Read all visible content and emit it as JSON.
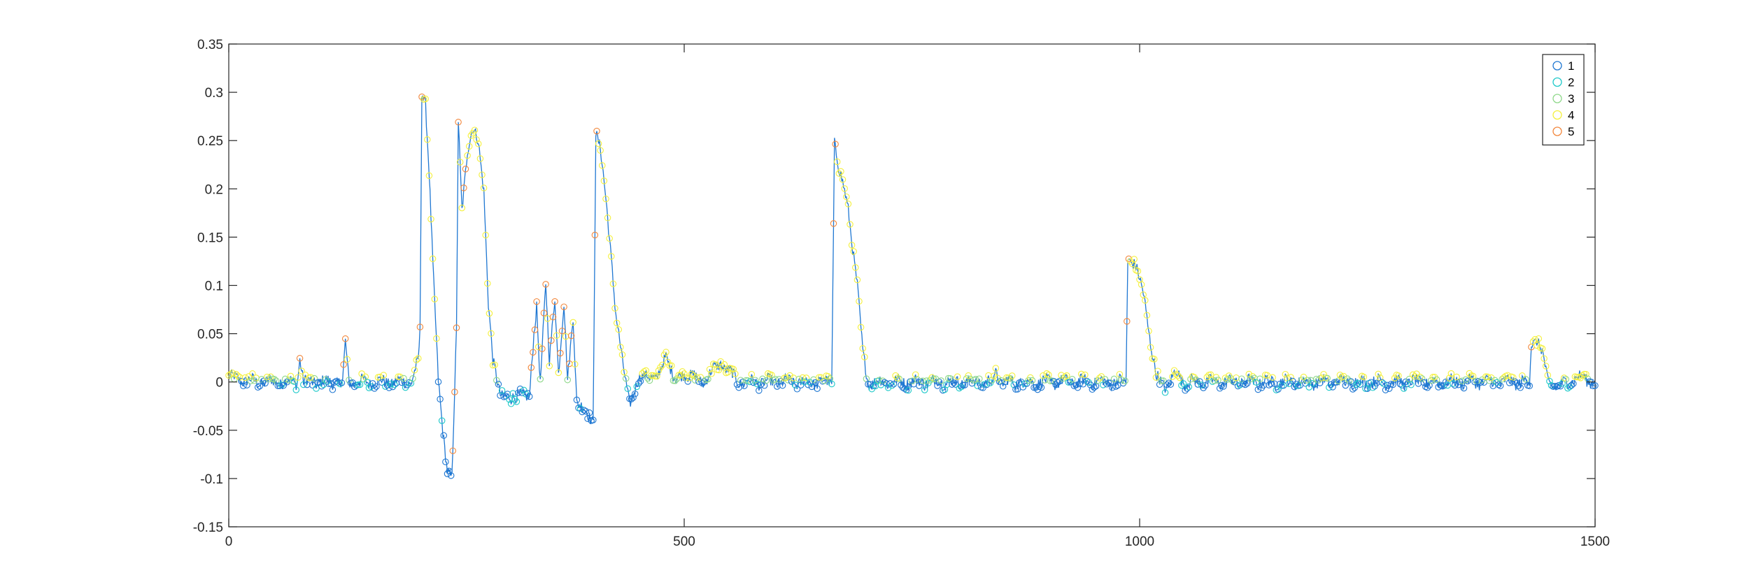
{
  "chart_data": {
    "type": "scatter",
    "xlim": [
      0,
      1500
    ],
    "ylim": [
      -0.15,
      0.35
    ],
    "x_ticks": [
      0,
      500,
      1000,
      1500
    ],
    "y_ticks": [
      -0.15,
      -0.1,
      -0.05,
      0,
      0.05,
      0.1,
      0.15,
      0.2,
      0.25,
      0.3,
      0.35
    ],
    "x_tick_labels": [
      "0",
      "500",
      "1000",
      "1500"
    ],
    "y_tick_labels": [
      "-0.15",
      "-0.1",
      "-0.05",
      "0",
      "0.05",
      "0.1",
      "0.15",
      "0.2",
      "0.25",
      "0.3",
      "0.35"
    ],
    "grid": false,
    "legend_position": "top-right",
    "marker": "circle",
    "connected_by_line": true,
    "series": [
      {
        "name": "1",
        "color": "#1f77d2"
      },
      {
        "name": "2",
        "color": "#1ec9c9"
      },
      {
        "name": "3",
        "color": "#8fd88a"
      },
      {
        "name": "4",
        "color": "#f4f03c"
      },
      {
        "name": "5",
        "color": "#f2873c"
      }
    ],
    "profile": [
      [
        0,
        0.005
      ],
      [
        30,
        0.0
      ],
      [
        75,
        0.0
      ],
      [
        78,
        0.025
      ],
      [
        82,
        0.0
      ],
      [
        125,
        0.0
      ],
      [
        128,
        0.04
      ],
      [
        132,
        0.0
      ],
      [
        200,
        0.0
      ],
      [
        208,
        0.02
      ],
      [
        210,
        0.05
      ],
      [
        212,
        0.3
      ],
      [
        216,
        0.29
      ],
      [
        220,
        0.22
      ],
      [
        225,
        0.1
      ],
      [
        230,
        0.0
      ],
      [
        235,
        -0.05
      ],
      [
        240,
        -0.09
      ],
      [
        245,
        -0.1
      ],
      [
        250,
        0.05
      ],
      [
        252,
        0.27
      ],
      [
        256,
        0.18
      ],
      [
        262,
        0.24
      ],
      [
        268,
        0.26
      ],
      [
        274,
        0.25
      ],
      [
        280,
        0.2
      ],
      [
        285,
        0.08
      ],
      [
        290,
        0.02
      ],
      [
        298,
        -0.01
      ],
      [
        310,
        -0.02
      ],
      [
        320,
        -0.01
      ],
      [
        330,
        -0.02
      ],
      [
        335,
        0.05
      ],
      [
        338,
        0.08
      ],
      [
        342,
        0.0
      ],
      [
        348,
        0.1
      ],
      [
        352,
        0.02
      ],
      [
        358,
        0.09
      ],
      [
        362,
        0.01
      ],
      [
        368,
        0.08
      ],
      [
        372,
        0.0
      ],
      [
        378,
        0.07
      ],
      [
        382,
        -0.02
      ],
      [
        390,
        -0.03
      ],
      [
        400,
        -0.04
      ],
      [
        403,
        0.26
      ],
      [
        408,
        0.24
      ],
      [
        415,
        0.18
      ],
      [
        420,
        0.13
      ],
      [
        425,
        0.07
      ],
      [
        432,
        0.02
      ],
      [
        440,
        -0.02
      ],
      [
        450,
        0.0
      ],
      [
        460,
        0.01
      ],
      [
        470,
        0.0
      ],
      [
        480,
        0.03
      ],
      [
        490,
        0.0
      ],
      [
        500,
        0.01
      ],
      [
        520,
        0.0
      ],
      [
        540,
        0.02
      ],
      [
        560,
        0.0
      ],
      [
        600,
        0.0
      ],
      [
        640,
        0.0
      ],
      [
        662,
        0.0
      ],
      [
        665,
        0.25
      ],
      [
        670,
        0.22
      ],
      [
        680,
        0.18
      ],
      [
        690,
        0.1
      ],
      [
        696,
        0.03
      ],
      [
        702,
        0.0
      ],
      [
        750,
        0.0
      ],
      [
        800,
        0.0
      ],
      [
        840,
        0.0
      ],
      [
        843,
        0.015
      ],
      [
        846,
        0.0
      ],
      [
        900,
        0.0
      ],
      [
        950,
        0.0
      ],
      [
        985,
        0.0
      ],
      [
        987,
        0.13
      ],
      [
        995,
        0.12
      ],
      [
        1005,
        0.09
      ],
      [
        1012,
        0.04
      ],
      [
        1018,
        0.005
      ],
      [
        1030,
        -0.005
      ],
      [
        1040,
        0.01
      ],
      [
        1050,
        0.0
      ],
      [
        1100,
        0.0
      ],
      [
        1200,
        0.0
      ],
      [
        1300,
        0.0
      ],
      [
        1400,
        0.0
      ],
      [
        1428,
        0.0
      ],
      [
        1430,
        0.04
      ],
      [
        1436,
        0.045
      ],
      [
        1442,
        0.03
      ],
      [
        1448,
        0.0
      ],
      [
        1460,
        -0.005
      ],
      [
        1480,
        0.005
      ],
      [
        1500,
        0.0
      ]
    ]
  }
}
